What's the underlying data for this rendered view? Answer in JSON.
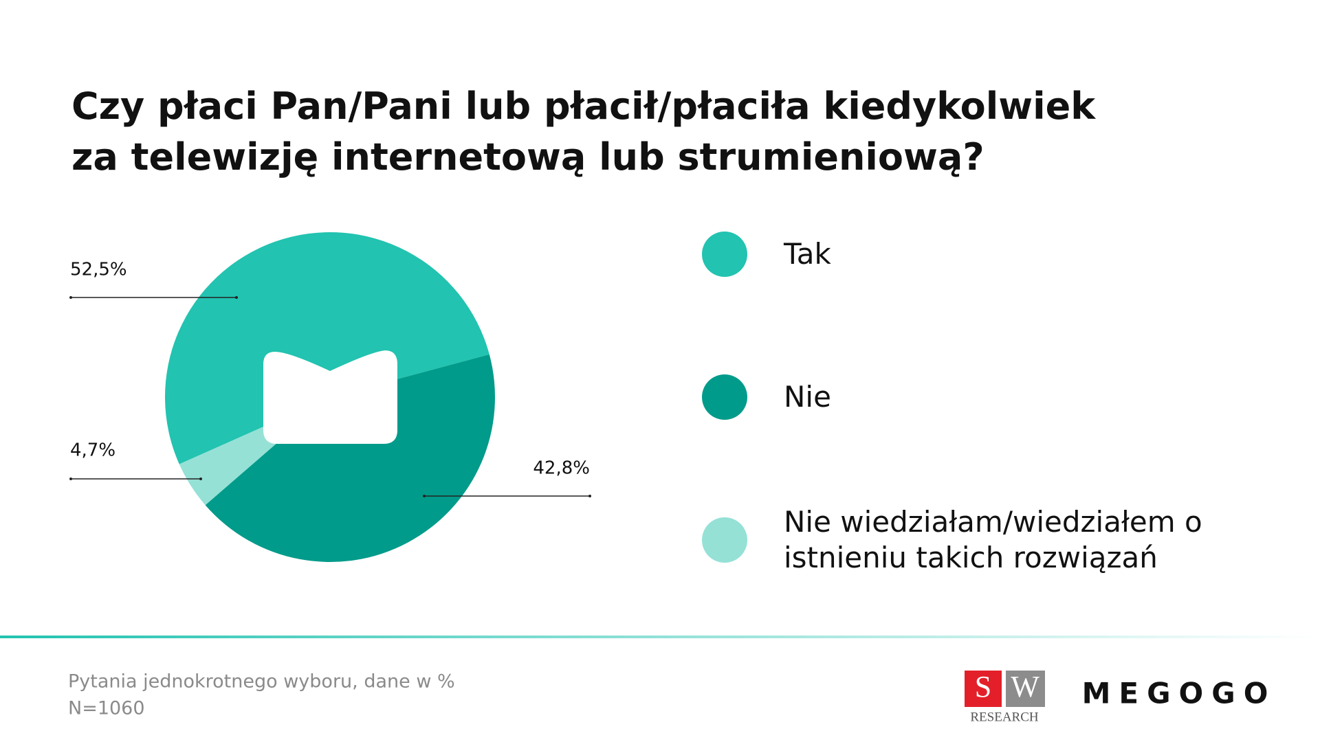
{
  "chart_data": {
    "type": "pie",
    "title": "Czy płaci Pan/Pani lub płacił/płaciła kiedykolwiek za telewizję internetową lub strumieniową?",
    "categories": [
      "Tak",
      "Nie",
      "Nie wiedziałam/wiedziałem o istnieniu takich rozwiązań"
    ],
    "values": [
      52.5,
      42.8,
      4.7
    ],
    "value_labels": [
      "52,5%",
      "42,8%",
      "4,7%"
    ],
    "colors": [
      "#22c3b0",
      "#009b8a",
      "#95e1d6"
    ]
  },
  "footer": {
    "note": "Pytania jednokrotnego wyboru, dane w %",
    "sample": "N=1060"
  },
  "logos": {
    "sw_s": "S",
    "sw_w": "W",
    "sw_sub": "RESEARCH",
    "megogo": "MEGOGO"
  }
}
